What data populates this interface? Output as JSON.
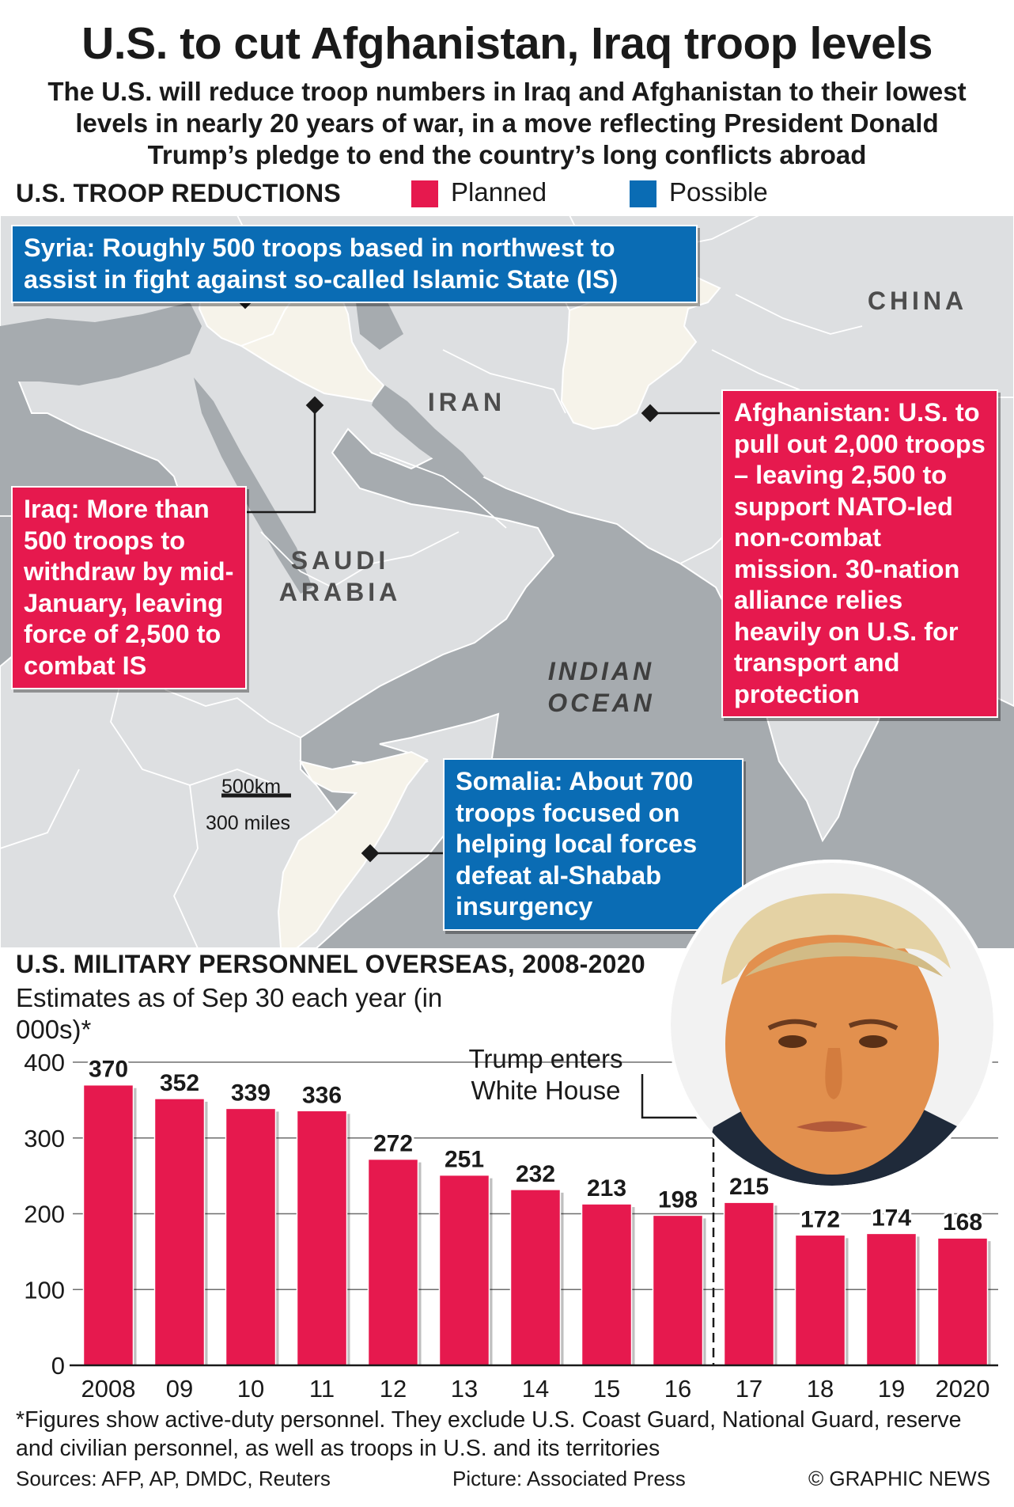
{
  "title": "U.S. to cut Afghanistan, Iraq troop levels",
  "subtitle": "The U.S. will reduce troop numbers in Iraq and Afghanistan to their lowest levels in nearly 20 years of war, in a move reflecting President Donald Trump’s pledge to end the country’s long conflicts abroad",
  "map_section": {
    "label": "U.S. TROOP REDUCTIONS",
    "legend": [
      {
        "label": "Planned",
        "color": "#e6194e"
      },
      {
        "label": "Possible",
        "color": "#0a6cb4"
      }
    ],
    "country_labels": {
      "china": "CHINA",
      "iran": "IRAN",
      "saudi_arabia": "SAUDI ARABIA",
      "indian_ocean": "INDIAN OCEAN"
    },
    "scale": {
      "km": "500km",
      "miles": "300 miles"
    },
    "callouts": {
      "syria": "Syria: Roughly 500 troops based in northwest to assist in fight against so-called Islamic State (IS)",
      "iraq": "Iraq: More than 500 troops to withdraw by mid-January, leaving force of 2,500 to combat IS",
      "afghanistan": "Afghanistan: U.S. to pull out 2,000 troops – leaving 2,500 to support NATO-led non-combat mission. 30-nation alliance relies heavily on U.S. for transport and protection",
      "somalia": "Somalia: About 700 troops focused on helping local forces defeat al-Shabab insurgency"
    },
    "colors": {
      "water": "#a6abaf",
      "land": "#dddfe1",
      "highlight": "#f6f3ea"
    }
  },
  "chart_section": {
    "annotation": "Trump enters White House",
    "portrait_icon": "portrait-photo"
  },
  "chart_data": {
    "type": "bar",
    "title": "U.S. MILITARY PERSONNEL OVERSEAS, 2008-2020",
    "subtitle": "Estimates as of Sep 30 each year (in 000s)*",
    "categories": [
      "2008",
      "09",
      "10",
      "11",
      "12",
      "13",
      "14",
      "15",
      "16",
      "17",
      "18",
      "19",
      "2020"
    ],
    "values": [
      370,
      352,
      339,
      336,
      272,
      251,
      232,
      213,
      198,
      215,
      172,
      174,
      168
    ],
    "yticks": [
      0,
      100,
      200,
      300,
      400
    ],
    "ylim": [
      0,
      400
    ],
    "bar_color": "#e6194e",
    "grid": true,
    "marker_between": [
      "16",
      "17"
    ]
  },
  "footnote": "*Figures show active-duty personnel. They exclude U.S. Coast Guard, National Guard, reserve and civilian personnel, as well as troops in U.S. and its territories",
  "footer": {
    "sources": "Sources: AFP, AP, DMDC, Reuters",
    "picture": "Picture: Associated Press",
    "credit": "© GRAPHIC NEWS"
  }
}
